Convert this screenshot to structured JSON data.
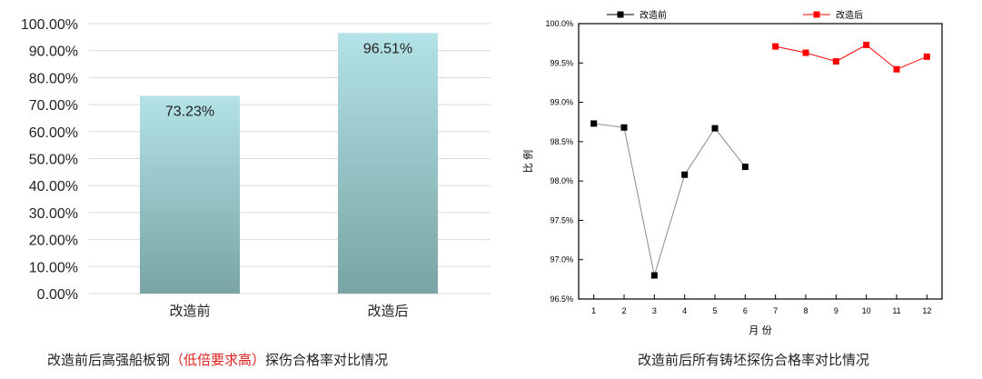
{
  "chart_data": [
    {
      "type": "bar",
      "categories": [
        "改造前",
        "改造后"
      ],
      "values": [
        73.23,
        96.51
      ],
      "data_labels": [
        "73.23%",
        "96.51%"
      ],
      "ylim": [
        0,
        100
      ],
      "yticks": [
        "0.00%",
        "10.00%",
        "20.00%",
        "30.00%",
        "40.00%",
        "50.00%",
        "60.00%",
        "70.00%",
        "80.00%",
        "90.00%",
        "100.00%"
      ],
      "grid": true,
      "colors": {
        "bar_top": "#b3e3e6",
        "bar_bottom": "#79a3a4",
        "grid": "#d9d9d9"
      },
      "caption_parts": [
        "改造前后高强船板钢",
        "（低倍要求高）",
        "探伤合格率对比情况"
      ],
      "caption_colors": {
        "normal": "#222222",
        "highlight": "#e02020"
      }
    },
    {
      "type": "line",
      "xlabel": "月 份",
      "ylabel": "比 例",
      "xlim": [
        0.5,
        12.5
      ],
      "ylim": [
        96.5,
        100.0
      ],
      "xticks": [
        "1",
        "2",
        "3",
        "4",
        "5",
        "6",
        "7",
        "8",
        "9",
        "10",
        "11",
        "12"
      ],
      "yticks": [
        "96.5%",
        "97.0%",
        "97.5%",
        "98.0%",
        "98.5%",
        "99.0%",
        "99.5%",
        "100.0%"
      ],
      "legend_position": "top",
      "series": [
        {
          "name": "改造前",
          "color": "#000000",
          "line_color": "#8a8a8a",
          "x": [
            1,
            2,
            3,
            4,
            5,
            6
          ],
          "values": [
            98.73,
            98.68,
            96.8,
            98.08,
            98.67,
            98.18
          ]
        },
        {
          "name": "改造后",
          "color": "#ff0000",
          "line_color": "#ff0000",
          "x": [
            7,
            8,
            9,
            10,
            11,
            12
          ],
          "values": [
            99.71,
            99.63,
            99.52,
            99.73,
            99.42,
            99.58
          ]
        }
      ],
      "caption": "改造前后所有铸坯探伤合格率对比情况"
    }
  ]
}
